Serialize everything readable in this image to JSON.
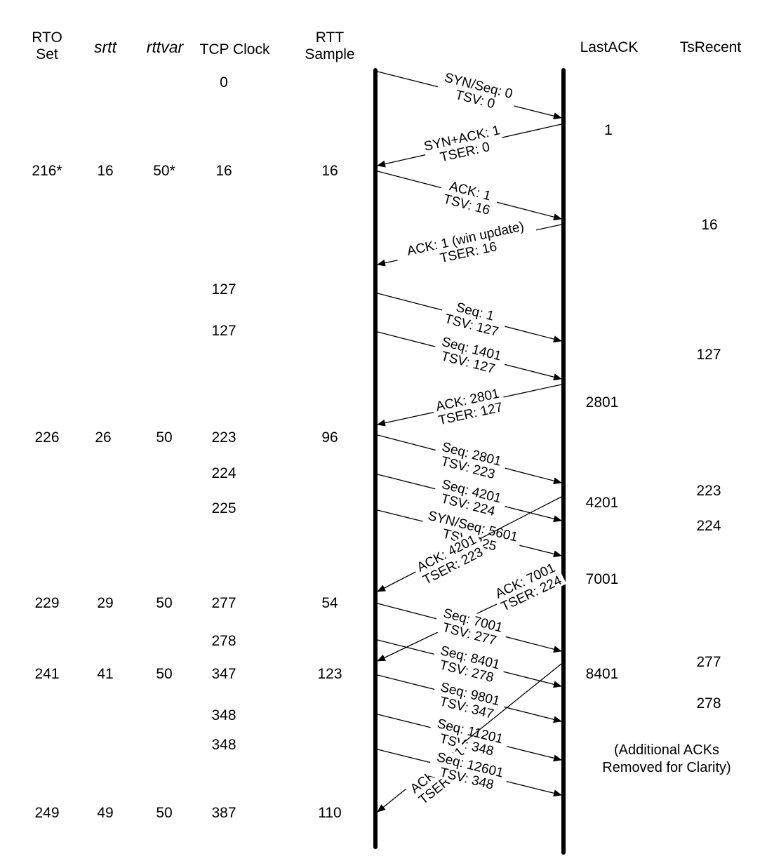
{
  "headers": {
    "rto_set": "RTO\nSet",
    "srtt": "srtt",
    "rttvar": "rttvar",
    "tcp_clock": "TCP Clock",
    "rtt_sample": "RTT\nSample",
    "last_ack": "LastACK",
    "ts_recent": "TsRecent"
  },
  "left_rows": [
    {
      "rto": "",
      "srtt": "",
      "rttvar": "",
      "clock": "0",
      "rtt": ""
    },
    {
      "rto": "216*",
      "srtt": "16",
      "rttvar": "50*",
      "clock": "16",
      "rtt": "16"
    },
    {
      "rto": "",
      "srtt": "",
      "rttvar": "",
      "clock": "127",
      "rtt": ""
    },
    {
      "rto": "",
      "srtt": "",
      "rttvar": "",
      "clock": "127",
      "rtt": ""
    },
    {
      "rto": "226",
      "srtt": "26",
      "rttvar": "50",
      "clock": "223",
      "rtt": "96"
    },
    {
      "rto": "",
      "srtt": "",
      "rttvar": "",
      "clock": "224",
      "rtt": ""
    },
    {
      "rto": "",
      "srtt": "",
      "rttvar": "",
      "clock": "225",
      "rtt": ""
    },
    {
      "rto": "229",
      "srtt": "29",
      "rttvar": "50",
      "clock": "277",
      "rtt": "54"
    },
    {
      "rto": "",
      "srtt": "",
      "rttvar": "",
      "clock": "278",
      "rtt": ""
    },
    {
      "rto": "241",
      "srtt": "41",
      "rttvar": "50",
      "clock": "347",
      "rtt": "123"
    },
    {
      "rto": "",
      "srtt": "",
      "rttvar": "",
      "clock": "348",
      "rtt": ""
    },
    {
      "rto": "",
      "srtt": "",
      "rttvar": "",
      "clock": "348",
      "rtt": ""
    },
    {
      "rto": "249",
      "srtt": "49",
      "rttvar": "50",
      "clock": "387",
      "rtt": "110"
    }
  ],
  "last_ack_values": [
    "1",
    "2801",
    "4201",
    "7001",
    "8401"
  ],
  "ts_recent_values": [
    "16",
    "127",
    "223",
    "224",
    "277",
    "278"
  ],
  "note": "(Additional ACKs\nRemoved for Clarity)",
  "messages": [
    {
      "dir": "right",
      "line1": "SYN/Seq: 0",
      "line2": "TSV: 0"
    },
    {
      "dir": "left",
      "line1": "SYN+ACK: 1",
      "line2": "TSER: 0"
    },
    {
      "dir": "right",
      "line1": "ACK: 1",
      "line2": "TSV: 16"
    },
    {
      "dir": "left",
      "line1": "ACK: 1 (win update)",
      "line2": "TSER: 16"
    },
    {
      "dir": "right",
      "line1": "Seq: 1",
      "line2": "TSV: 127"
    },
    {
      "dir": "right",
      "line1": "Seq: 1401",
      "line2": "TSV: 127"
    },
    {
      "dir": "left",
      "line1": "ACK: 2801",
      "line2": "TSER: 127"
    },
    {
      "dir": "right",
      "line1": "Seq: 2801",
      "line2": "TSV: 223"
    },
    {
      "dir": "right",
      "line1": "Seq: 4201",
      "line2": "TSV: 224"
    },
    {
      "dir": "right",
      "line1": "SYN/Seq: 5601",
      "line2": "TSV: 225"
    },
    {
      "dir": "left",
      "line1": "ACK: 4201",
      "line2": "TSER: 223"
    },
    {
      "dir": "left",
      "line1": "ACK: 7001",
      "line2": "TSER: 224"
    },
    {
      "dir": "right",
      "line1": "Seq: 7001",
      "line2": "TSV: 277"
    },
    {
      "dir": "right",
      "line1": "Seq: 8401",
      "line2": "TSV: 278"
    },
    {
      "dir": "right",
      "line1": "Seq: 9801",
      "line2": "TSV: 347"
    },
    {
      "dir": "right",
      "line1": "Seq: 11201",
      "line2": "TSV: 348"
    },
    {
      "dir": "left",
      "line1": "ACK: 8401",
      "line2": "TSER: 277"
    },
    {
      "dir": "right",
      "line1": "Seq: 12601",
      "line2": "TSV: 348"
    }
  ]
}
